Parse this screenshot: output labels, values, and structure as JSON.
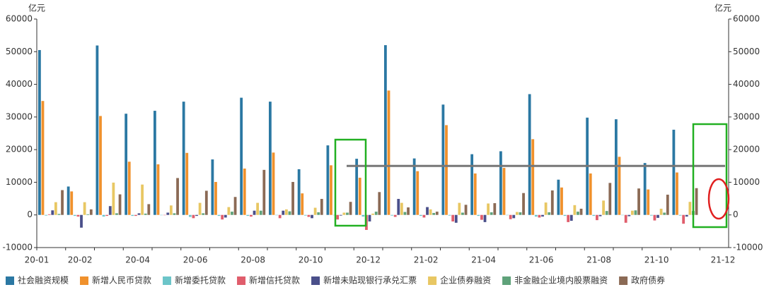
{
  "chart_data": {
    "type": "bar",
    "y_unit": "亿元",
    "y2_unit": "亿元",
    "categories": [
      "20-01",
      "20-02",
      null,
      "20-04",
      null,
      "20-06",
      null,
      "20-08",
      null,
      "20-10",
      null,
      "20-12",
      null,
      "21-02",
      null,
      "21-04",
      null,
      "21-06",
      null,
      "21-08",
      null,
      "21-10",
      null,
      "21-12"
    ],
    "ylim": [
      -10000,
      60000
    ],
    "yticks": [
      -10000,
      0,
      10000,
      20000,
      30000,
      40000,
      50000,
      60000
    ],
    "y2lim": [
      -10000,
      60000
    ],
    "y2ticks": [
      -10000,
      0,
      10000,
      20000,
      30000,
      40000,
      50000,
      60000
    ],
    "grid": false,
    "legend": "bottom",
    "reference_value": 15000,
    "series": [
      {
        "name": "社会融资规模",
        "color": "#2b78a3",
        "values": [
          50500,
          8700,
          51900,
          31000,
          31900,
          34700,
          17000,
          35900,
          34700,
          14000,
          21300,
          17200,
          52000,
          17300,
          33800,
          18600,
          19500,
          37000,
          10800,
          29800,
          29300,
          15900,
          26100,
          null
        ]
      },
      {
        "name": "新增人民币贷款",
        "color": "#f0912c",
        "values": [
          34900,
          7200,
          30300,
          16300,
          15500,
          19000,
          10100,
          14200,
          19100,
          6600,
          15200,
          11400,
          38100,
          13400,
          27500,
          12700,
          14400,
          23200,
          8400,
          12700,
          17800,
          7800,
          13000,
          null
        ]
      },
      {
        "name": "新增委托贷款",
        "color": "#6cc5c9",
        "values": [
          -200,
          -300,
          -500,
          -300,
          -100,
          -600,
          -300,
          -300,
          -100,
          -200,
          -100,
          -500,
          -200,
          -300,
          -200,
          -300,
          -100,
          -500,
          -300,
          -300,
          -100,
          -200,
          -200,
          null
        ]
      },
      {
        "name": "新增信托贷款",
        "color": "#e05d6c",
        "values": [
          200,
          -500,
          -300,
          -300,
          -100,
          -1000,
          -1400,
          -500,
          -1000,
          -600,
          -1400,
          -4600,
          -600,
          -800,
          -2000,
          -1500,
          -1300,
          -800,
          -2200,
          -1600,
          -2400,
          -1700,
          -2700,
          null
        ]
      },
      {
        "name": "新增未贴现银行承兑汇票",
        "color": "#4a4f8a",
        "values": [
          1400,
          -3900,
          2700,
          500,
          700,
          -300,
          -800,
          1300,
          1300,
          -1000,
          -200,
          -2000,
          4900,
          2400,
          -2400,
          -2200,
          -1000,
          -500,
          -1800,
          -400,
          -400,
          -900,
          -500,
          null
        ]
      },
      {
        "name": "企业债券融资",
        "color": "#e8c763",
        "values": [
          3900,
          3900,
          9900,
          9300,
          2900,
          3700,
          2400,
          3700,
          1700,
          2200,
          700,
          400,
          3700,
          1700,
          3700,
          3500,
          900,
          3800,
          3000,
          4400,
          1300,
          1900,
          4000,
          null
        ]
      },
      {
        "name": "非金融企业境内股票融资",
        "color": "#5fa27a",
        "values": [
          300,
          200,
          500,
          400,
          500,
          500,
          1000,
          1300,
          1100,
          800,
          700,
          1000,
          900,
          600,
          700,
          800,
          800,
          800,
          1000,
          1200,
          1400,
          700,
          1200,
          null
        ]
      },
      {
        "name": "政府债券",
        "color": "#8b6a55",
        "values": [
          7600,
          1700,
          6300,
          3300,
          11300,
          7400,
          5500,
          13800,
          10100,
          4900,
          4000,
          7000,
          2300,
          1000,
          3100,
          3600,
          6700,
          7500,
          1900,
          9800,
          8100,
          6200,
          8200,
          null
        ]
      }
    ]
  }
}
